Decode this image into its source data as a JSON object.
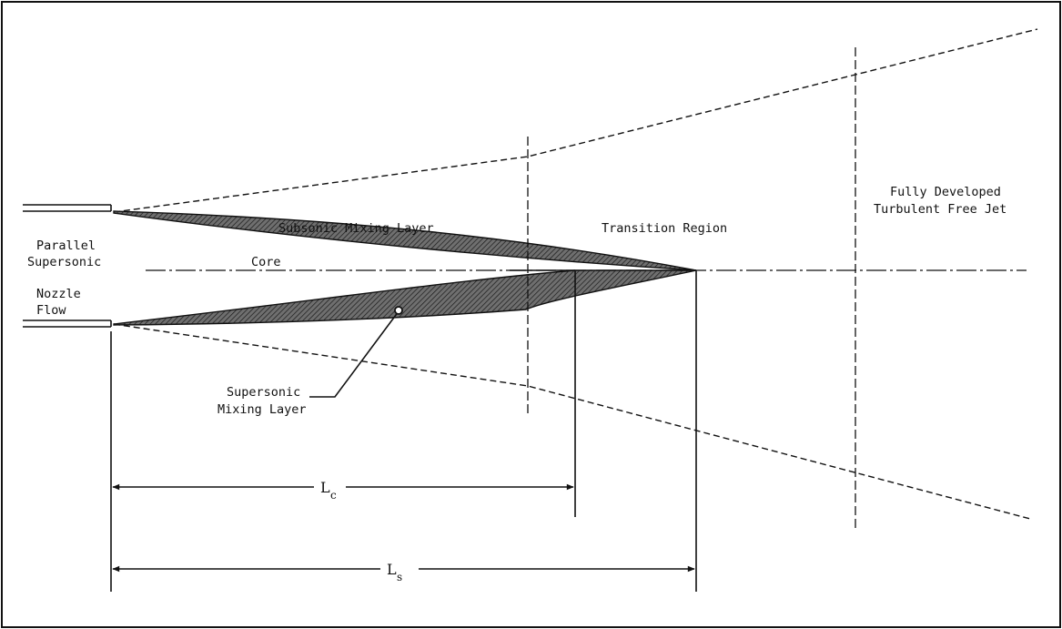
{
  "labels": {
    "nozzle_line1": "Parallel",
    "nozzle_line2": "Supersonic",
    "nozzle_line3": "Nozzle",
    "nozzle_line4": "Flow",
    "core": "Core",
    "subsonic_mixing_layer": "Subsonic Mixing Layer",
    "transition_region": "Transition Region",
    "fully_developed_line1": "Fully Developed",
    "fully_developed_line2": "Turbulent Free Jet",
    "supersonic_line1": "Supersonic",
    "supersonic_line2": "Mixing Layer"
  },
  "dimensions": {
    "lc_symbol": "L",
    "lc_sub": "c",
    "ls_symbol": "L",
    "ls_sub": "s"
  }
}
